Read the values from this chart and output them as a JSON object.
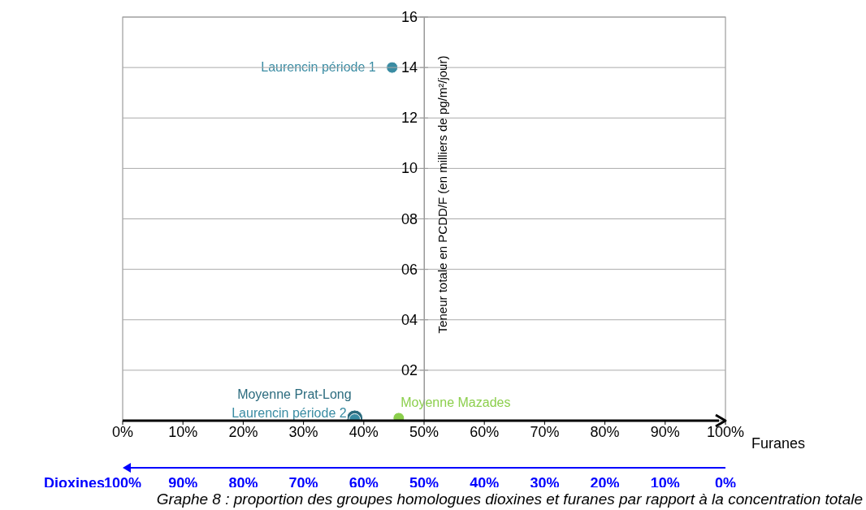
{
  "chart_data": {
    "type": "scatter",
    "xlabel": "Furanes",
    "ylabel": "Teneur totale en PCDD/F (en milliers de pg/m²/jour)",
    "x2label": "Dioxines",
    "xlim": [
      0,
      100
    ],
    "xticks": [
      {
        "value": 0,
        "label": "0%"
      },
      {
        "value": 10,
        "label": "10%"
      },
      {
        "value": 20,
        "label": "20%"
      },
      {
        "value": 30,
        "label": "30%"
      },
      {
        "value": 40,
        "label": "40%"
      },
      {
        "value": 50,
        "label": "50%"
      },
      {
        "value": 60,
        "label": "60%"
      },
      {
        "value": 70,
        "label": "70%"
      },
      {
        "value": 80,
        "label": "80%"
      },
      {
        "value": 90,
        "label": "90%"
      },
      {
        "value": 100,
        "label": "100%"
      }
    ],
    "x2lim": [
      100,
      0
    ],
    "x2ticks": [
      {
        "value": 100,
        "label": "100%"
      },
      {
        "value": 90,
        "label": "90%"
      },
      {
        "value": 80,
        "label": "80%"
      },
      {
        "value": 70,
        "label": "70%"
      },
      {
        "value": 60,
        "label": "60%"
      },
      {
        "value": 50,
        "label": "50%"
      },
      {
        "value": 40,
        "label": "40%"
      },
      {
        "value": 30,
        "label": "30%"
      },
      {
        "value": 20,
        "label": "20%"
      },
      {
        "value": 10,
        "label": "10%"
      },
      {
        "value": 0,
        "label": "0%"
      }
    ],
    "ylim": [
      0,
      16
    ],
    "yticks": [
      {
        "value": 2,
        "label": "02"
      },
      {
        "value": 4,
        "label": "04"
      },
      {
        "value": 6,
        "label": "06"
      },
      {
        "value": 8,
        "label": "08"
      },
      10,
      12,
      14,
      16
    ],
    "grid": "y",
    "marker": "circle",
    "series": [
      {
        "name": "Laurencin période 1",
        "color": "#3a8ca3",
        "x": [
          44.7
        ],
        "values": [
          14
        ]
      },
      {
        "name": "Moyenne Prat-Long",
        "color": "#2b6b7e",
        "x": [
          38.5
        ],
        "values": [
          0.1
        ]
      },
      {
        "name": "Laurencin période 2",
        "color": "#3a8ca3",
        "x": [
          38.5
        ],
        "values": [
          0.05
        ]
      },
      {
        "name": "Moyenne Mazades",
        "color": "#8ccf4d",
        "x": [
          45.8
        ],
        "values": [
          0.1
        ]
      }
    ],
    "annotations": [
      "Graphe 8 : proportion des groupes homologues dioxines et furanes par rapport à la concentration totale"
    ]
  }
}
